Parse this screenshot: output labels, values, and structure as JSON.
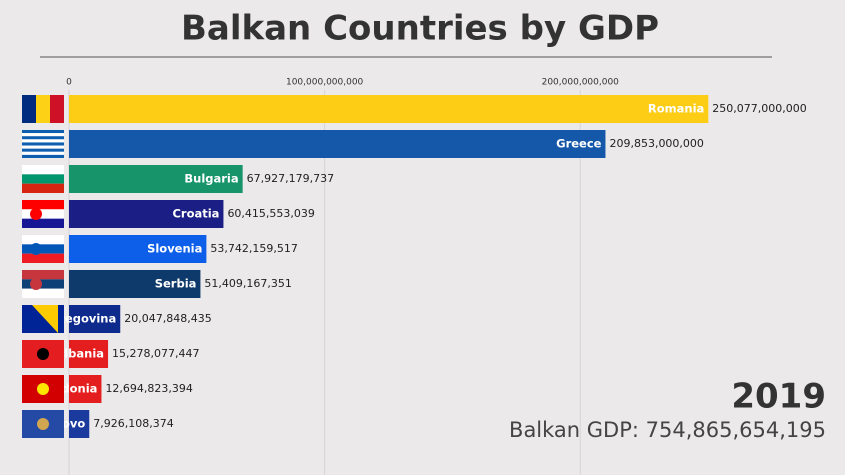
{
  "chart_data": {
    "type": "barh",
    "title": "Balkan Countries by GDP",
    "categories": [
      "Romania",
      "Greece",
      "Bulgaria",
      "Croatia",
      "Slovenia",
      "Serbia",
      "zegovina",
      "lbania",
      "donia",
      "ovo"
    ],
    "values": [
      250077000000,
      209853000000,
      67927179737,
      60415553039,
      53742159517,
      51409167351,
      20047848435,
      15278077447,
      12694823394,
      7926108374
    ],
    "value_labels": [
      "250,077,000,000",
      "209,853,000,000",
      "67,927,179,737",
      "60,415,553,039",
      "53,742,159,517",
      "51,409,167,351",
      "20,047,848,435",
      "15,278,077,447",
      "12,694,823,394",
      "7,926,108,374"
    ],
    "colors": [
      "#fdcc14",
      "#1557a8",
      "#17946a",
      "#1b1f85",
      "#0d5ee8",
      "#0e3a6b",
      "#0e2a8c",
      "#e41e1e",
      "#e41e1e",
      "#1a3a9e"
    ],
    "xlim": [
      0,
      275000000000
    ],
    "xticks": [
      0,
      {
        "value": 100000000000,
        "label": "100,000,000,000"
      },
      {
        "value": 200000000000,
        "label": "200,000,000,000"
      }
    ],
    "grid": true,
    "year": "2019",
    "total_label": "Balkan GDP: 754,865,654,195"
  }
}
